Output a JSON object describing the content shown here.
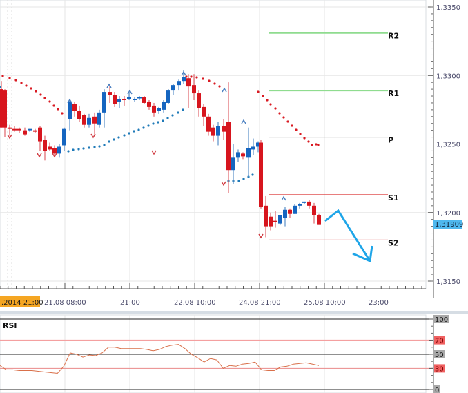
{
  "chart_data": {
    "type": "candlestick",
    "title": "",
    "instrument_price_axis": {
      "ticks": [
        "1,3350",
        "1,3300",
        "1,3250",
        "1,3200",
        "1,3150"
      ],
      "tick_values": [
        1.335,
        1.33,
        1.325,
        1.32,
        1.315
      ],
      "ylim": [
        1.3135,
        1.3355
      ],
      "current_price_label": "1,31909",
      "current_price_color": "#4fb8ee"
    },
    "time_axis": {
      "ticks": [
        ".2014 21:00",
        "21.08 08:00",
        "21:00",
        "22.08 10:00",
        "24.08 21:00",
        "25.08 10:00",
        "23:00"
      ],
      "highlighted_tick": ".2014 21:00",
      "highlight_color": "#f5a623"
    },
    "pivot_levels": [
      {
        "name": "R2",
        "value": 1.3331,
        "color": "#8fdc8f"
      },
      {
        "name": "R1",
        "value": 1.3289,
        "color": "#8fdc8f"
      },
      {
        "name": "P",
        "value": 1.3255,
        "color": "#888888"
      },
      {
        "name": "S1",
        "value": 1.3213,
        "color": "#d93030"
      },
      {
        "name": "S2",
        "value": 1.318,
        "color": "#d93030"
      }
    ],
    "candles": [
      {
        "x": 2,
        "o": 1.329,
        "h": 1.3296,
        "l": 1.3262,
        "c": 1.3262
      },
      {
        "x": 7,
        "o": 1.3289,
        "h": 1.329,
        "l": 1.3255,
        "c": 1.3262
      },
      {
        "x": 14,
        "o": 1.3262,
        "h": 1.3264,
        "l": 1.3256,
        "c": 1.3261
      },
      {
        "x": 21,
        "o": 1.3261,
        "h": 1.3263,
        "l": 1.3259,
        "c": 1.326
      },
      {
        "x": 28,
        "o": 1.3261,
        "h": 1.3262,
        "l": 1.3258,
        "c": 1.326
      },
      {
        "x": 36,
        "o": 1.326,
        "h": 1.3262,
        "l": 1.3256,
        "c": 1.3257
      },
      {
        "x": 43,
        "o": 1.326,
        "h": 1.3261,
        "l": 1.3259,
        "c": 1.3261
      },
      {
        "x": 51,
        "o": 1.326,
        "h": 1.3261,
        "l": 1.3258,
        "c": 1.3259
      },
      {
        "x": 58,
        "o": 1.3262,
        "h": 1.3263,
        "l": 1.3245,
        "c": 1.3252
      },
      {
        "x": 65,
        "o": 1.3253,
        "h": 1.3256,
        "l": 1.3238,
        "c": 1.3245
      },
      {
        "x": 72,
        "o": 1.3248,
        "h": 1.3251,
        "l": 1.3245,
        "c": 1.3246
      },
      {
        "x": 79,
        "o": 1.3247,
        "h": 1.3249,
        "l": 1.3242,
        "c": 1.3243
      },
      {
        "x": 86,
        "o": 1.3243,
        "h": 1.325,
        "l": 1.324,
        "c": 1.3248
      },
      {
        "x": 93,
        "o": 1.3249,
        "h": 1.3262,
        "l": 1.3245,
        "c": 1.3261
      },
      {
        "x": 101,
        "o": 1.3268,
        "h": 1.3282,
        "l": 1.326,
        "c": 1.3281
      },
      {
        "x": 108,
        "o": 1.3279,
        "h": 1.3281,
        "l": 1.327,
        "c": 1.3274
      },
      {
        "x": 115,
        "o": 1.3274,
        "h": 1.3278,
        "l": 1.3266,
        "c": 1.3268
      },
      {
        "x": 122,
        "o": 1.3271,
        "h": 1.3272,
        "l": 1.3262,
        "c": 1.3264
      },
      {
        "x": 129,
        "o": 1.3264,
        "h": 1.3272,
        "l": 1.3262,
        "c": 1.3269
      },
      {
        "x": 137,
        "o": 1.327,
        "h": 1.3273,
        "l": 1.3257,
        "c": 1.3265
      },
      {
        "x": 144,
        "o": 1.3264,
        "h": 1.3275,
        "l": 1.3262,
        "c": 1.3273
      },
      {
        "x": 151,
        "o": 1.3273,
        "h": 1.329,
        "l": 1.3262,
        "c": 1.3288
      },
      {
        "x": 159,
        "o": 1.3288,
        "h": 1.3294,
        "l": 1.328,
        "c": 1.3286
      },
      {
        "x": 166,
        "o": 1.3286,
        "h": 1.3288,
        "l": 1.3277,
        "c": 1.3279
      },
      {
        "x": 173,
        "o": 1.3281,
        "h": 1.3285,
        "l": 1.3276,
        "c": 1.3283
      },
      {
        "x": 180,
        "o": 1.3283,
        "h": 1.3285,
        "l": 1.3278,
        "c": 1.3282
      },
      {
        "x": 187,
        "o": 1.3283,
        "h": 1.3288,
        "l": 1.3282,
        "c": 1.3284
      },
      {
        "x": 195,
        "o": 1.3282,
        "h": 1.3284,
        "l": 1.3281,
        "c": 1.3283
      },
      {
        "x": 202,
        "o": 1.3284,
        "h": 1.3285,
        "l": 1.3282,
        "c": 1.3284
      },
      {
        "x": 209,
        "o": 1.3284,
        "h": 1.3285,
        "l": 1.3279,
        "c": 1.328
      },
      {
        "x": 216,
        "o": 1.3281,
        "h": 1.3282,
        "l": 1.3275,
        "c": 1.3277
      },
      {
        "x": 223,
        "o": 1.3278,
        "h": 1.328,
        "l": 1.327,
        "c": 1.3273
      },
      {
        "x": 230,
        "o": 1.3274,
        "h": 1.3277,
        "l": 1.3272,
        "c": 1.3276
      },
      {
        "x": 237,
        "o": 1.3275,
        "h": 1.3282,
        "l": 1.3273,
        "c": 1.3281
      },
      {
        "x": 244,
        "o": 1.328,
        "h": 1.329,
        "l": 1.3279,
        "c": 1.3289
      },
      {
        "x": 251,
        "o": 1.3289,
        "h": 1.3294,
        "l": 1.3286,
        "c": 1.3293
      },
      {
        "x": 259,
        "o": 1.3293,
        "h": 1.3297,
        "l": 1.3289,
        "c": 1.3296
      },
      {
        "x": 266,
        "o": 1.3296,
        "h": 1.3304,
        "l": 1.3294,
        "c": 1.3299
      },
      {
        "x": 273,
        "o": 1.3298,
        "h": 1.3301,
        "l": 1.3276,
        "c": 1.3292
      },
      {
        "x": 281,
        "o": 1.3293,
        "h": 1.3301,
        "l": 1.3282,
        "c": 1.3287
      },
      {
        "x": 288,
        "o": 1.3287,
        "h": 1.3289,
        "l": 1.327,
        "c": 1.3276
      },
      {
        "x": 295,
        "o": 1.3277,
        "h": 1.3279,
        "l": 1.3263,
        "c": 1.327
      },
      {
        "x": 302,
        "o": 1.327,
        "h": 1.3272,
        "l": 1.3256,
        "c": 1.3259
      },
      {
        "x": 309,
        "o": 1.3262,
        "h": 1.3264,
        "l": 1.3252,
        "c": 1.3256
      },
      {
        "x": 316,
        "o": 1.3256,
        "h": 1.3266,
        "l": 1.3249,
        "c": 1.3263
      },
      {
        "x": 324,
        "o": 1.3263,
        "h": 1.3268,
        "l": 1.3253,
        "c": 1.3259
      },
      {
        "x": 331,
        "o": 1.3266,
        "h": 1.3295,
        "l": 1.3214,
        "c": 1.3231
      },
      {
        "x": 338,
        "o": 1.3231,
        "h": 1.325,
        "l": 1.3221,
        "c": 1.324
      },
      {
        "x": 345,
        "o": 1.324,
        "h": 1.3246,
        "l": 1.3237,
        "c": 1.3244
      },
      {
        "x": 352,
        "o": 1.3243,
        "h": 1.3244,
        "l": 1.3239,
        "c": 1.3241
      },
      {
        "x": 360,
        "o": 1.324,
        "h": 1.3262,
        "l": 1.3226,
        "c": 1.3247
      },
      {
        "x": 367,
        "o": 1.3246,
        "h": 1.3254,
        "l": 1.3242,
        "c": 1.3248
      },
      {
        "x": 374,
        "o": 1.3248,
        "h": 1.3252,
        "l": 1.3244,
        "c": 1.3251
      },
      {
        "x": 378,
        "o": 1.3251,
        "h": 1.3253,
        "l": 1.3203,
        "c": 1.3204
      },
      {
        "x": 385,
        "o": 1.3205,
        "h": 1.3212,
        "l": 1.3182,
        "c": 1.319
      },
      {
        "x": 392,
        "o": 1.3197,
        "h": 1.32,
        "l": 1.3187,
        "c": 1.319
      },
      {
        "x": 399,
        "o": 1.3194,
        "h": 1.3201,
        "l": 1.3189,
        "c": 1.3193
      },
      {
        "x": 406,
        "o": 1.3192,
        "h": 1.3198,
        "l": 1.3191,
        "c": 1.3198
      },
      {
        "x": 413,
        "o": 1.3196,
        "h": 1.3204,
        "l": 1.319,
        "c": 1.3202
      },
      {
        "x": 420,
        "o": 1.3202,
        "h": 1.3203,
        "l": 1.3196,
        "c": 1.3199
      },
      {
        "x": 427,
        "o": 1.3199,
        "h": 1.3206,
        "l": 1.3199,
        "c": 1.3205
      },
      {
        "x": 434,
        "o": 1.3205,
        "h": 1.3207,
        "l": 1.3203,
        "c": 1.3206
      },
      {
        "x": 441,
        "o": 1.3207,
        "h": 1.3208,
        "l": 1.3206,
        "c": 1.3208
      },
      {
        "x": 448,
        "o": 1.3208,
        "h": 1.3209,
        "l": 1.3203,
        "c": 1.3205
      },
      {
        "x": 455,
        "o": 1.3205,
        "h": 1.3207,
        "l": 1.3192,
        "c": 1.3198
      },
      {
        "x": 462,
        "o": 1.3198,
        "h": 1.3199,
        "l": 1.3191,
        "c": 1.3191
      }
    ],
    "parabolic_sar": {
      "bearish_color": "#d91a22",
      "bullish_color": "#1f7ab8"
    },
    "annotation": {
      "type": "arrow",
      "direction": "down",
      "color": "#1ea5e8"
    },
    "rsi": {
      "title": "RSI",
      "ylim": [
        0,
        100
      ],
      "ticks": [
        "100",
        "70",
        "50",
        "30",
        "0"
      ],
      "overbought": 70,
      "oversold": 30,
      "line_color": "#d9704a",
      "values": [
        34,
        28,
        28,
        27,
        27,
        27,
        26,
        25,
        24,
        23,
        33,
        52,
        50,
        46,
        49,
        48,
        52,
        60,
        60,
        58,
        58,
        58,
        58,
        57,
        55,
        57,
        61,
        63,
        64,
        58,
        50,
        45,
        39,
        44,
        42,
        30,
        34,
        33,
        36,
        37,
        39,
        28,
        27,
        27,
        32,
        33,
        36,
        37,
        38,
        36,
        34
      ]
    }
  }
}
